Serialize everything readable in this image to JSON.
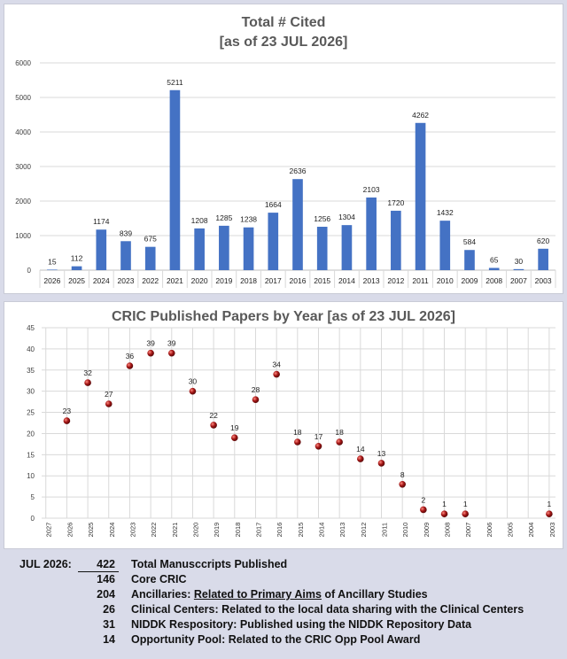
{
  "chart_data": [
    {
      "type": "bar",
      "title": "Total # Cited",
      "subtitle": "[as of 23 JUL 2026]",
      "categories": [
        "2026",
        "2025",
        "2024",
        "2023",
        "2022",
        "2021",
        "2020",
        "2019",
        "2018",
        "2017",
        "2016",
        "2015",
        "2014",
        "2013",
        "2012",
        "2011",
        "2010",
        "2009",
        "2008",
        "2007",
        "2003"
      ],
      "values": [
        15,
        112,
        1174,
        839,
        675,
        5211,
        1208,
        1285,
        1238,
        1664,
        2636,
        1256,
        1304,
        2103,
        1720,
        4262,
        1432,
        584,
        65,
        30,
        620
      ],
      "ylim": [
        0,
        6000
      ],
      "yticks": [
        0,
        1000,
        2000,
        3000,
        4000,
        5000,
        6000
      ],
      "grid": true,
      "bar_color": "#4472c4"
    },
    {
      "type": "scatter",
      "title": "CRIC Published Papers by Year [as of 23 JUL 2026]",
      "x_categories": [
        "2027",
        "2026",
        "2025",
        "2024",
        "2023",
        "2022",
        "2021",
        "2020",
        "2019",
        "2018",
        "2017",
        "2016",
        "2015",
        "2014",
        "2013",
        "2012",
        "2011",
        "2010",
        "2009",
        "2008",
        "2007",
        "2006",
        "2005",
        "2004",
        "2003"
      ],
      "points": [
        {
          "x": "2026",
          "y": 23
        },
        {
          "x": "2025",
          "y": 32
        },
        {
          "x": "2024",
          "y": 27
        },
        {
          "x": "2023",
          "y": 36
        },
        {
          "x": "2022",
          "y": 39
        },
        {
          "x": "2021",
          "y": 39
        },
        {
          "x": "2020",
          "y": 30
        },
        {
          "x": "2019",
          "y": 22
        },
        {
          "x": "2018",
          "y": 19
        },
        {
          "x": "2017",
          "y": 28
        },
        {
          "x": "2016",
          "y": 34
        },
        {
          "x": "2015",
          "y": 18
        },
        {
          "x": "2014",
          "y": 17
        },
        {
          "x": "2013",
          "y": 18
        },
        {
          "x": "2012",
          "y": 14
        },
        {
          "x": "2011",
          "y": 13
        },
        {
          "x": "2010",
          "y": 8
        },
        {
          "x": "2009",
          "y": 2
        },
        {
          "x": "2008",
          "y": 1
        },
        {
          "x": "2007",
          "y": 1
        },
        {
          "x": "2003",
          "y": 1
        }
      ],
      "ylim": [
        0,
        45
      ],
      "yticks": [
        0,
        5,
        10,
        15,
        20,
        25,
        30,
        35,
        40,
        45
      ],
      "grid": true,
      "marker_color": "#a31515"
    }
  ],
  "summary": {
    "date_label": "JUL 2026:",
    "rows": [
      {
        "count": "422",
        "desc": "Total Manusccripts Published"
      },
      {
        "count": "146",
        "desc": "Core CRIC"
      },
      {
        "count": "204",
        "desc_pre": "Ancillaries: ",
        "desc_ul": "Related to Primary Aims",
        "desc_post": " of Ancillary Studies"
      },
      {
        "count": "26",
        "desc": "Clinical Centers: Related to the local data sharing with the Clinical Centers"
      },
      {
        "count": "31",
        "desc": "NIDDK Respository: Published using the NIDDK Repository Data"
      },
      {
        "count": "14",
        "desc": "Opportunity Pool: Related to the CRIC Opp Pool Award"
      }
    ]
  }
}
